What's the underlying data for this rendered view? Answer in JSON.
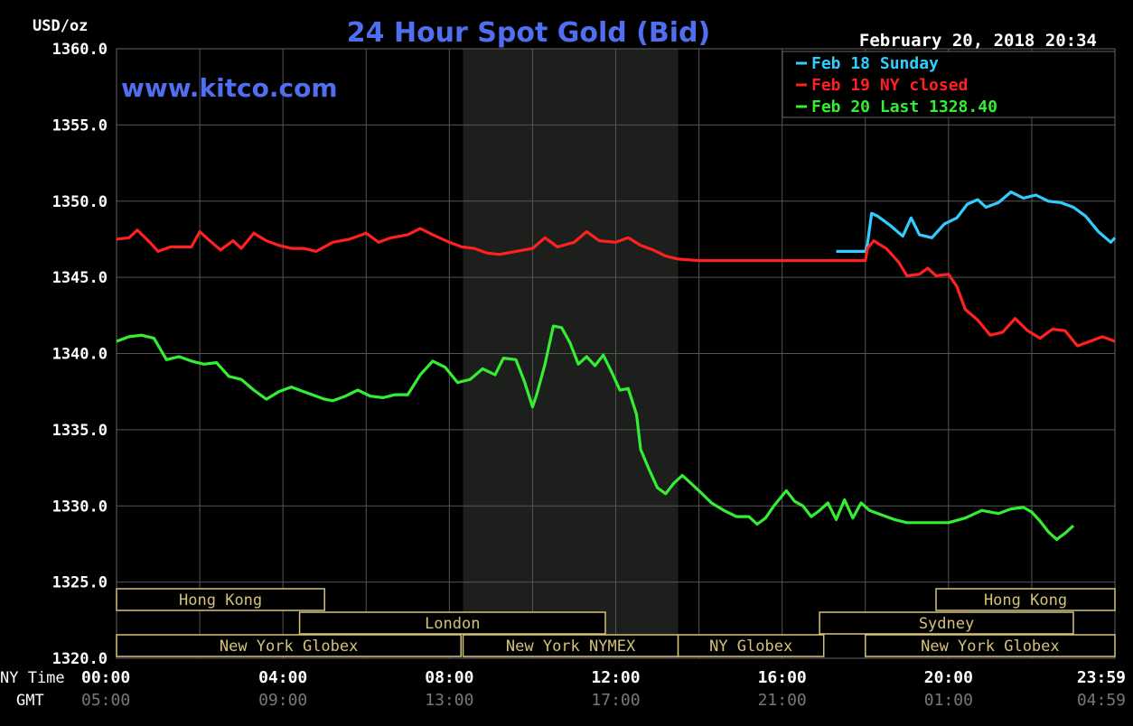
{
  "chart_data": {
    "type": "line",
    "title": "24 Hour Spot Gold (Bid)",
    "ylabel": "USD/oz",
    "watermark": "www.kitco.com",
    "timestamp": "February 20, 2018 20:34",
    "ylim": [
      1320,
      1360
    ],
    "y_ticks": [
      "1360.0",
      "1355.0",
      "1350.0",
      "1345.0",
      "1340.0",
      "1335.0",
      "1330.0",
      "1325.0",
      "1320.0"
    ],
    "xlim": [
      0,
      24
    ],
    "x_row_label": "NY Time",
    "gmt_row_label": "GMT",
    "x_ticks": [
      {
        "x": 0,
        "ny": "00:00",
        "gmt": "05:00"
      },
      {
        "x": 4,
        "ny": "04:00",
        "gmt": "09:00"
      },
      {
        "x": 8,
        "ny": "08:00",
        "gmt": "13:00"
      },
      {
        "x": 12,
        "ny": "12:00",
        "gmt": "17:00"
      },
      {
        "x": 16,
        "ny": "16:00",
        "gmt": "21:00"
      },
      {
        "x": 20,
        "ny": "20:00",
        "gmt": "01:00"
      },
      {
        "x": 24,
        "ny": "23:59",
        "gmt": "04:59"
      }
    ],
    "shaded_range": [
      8.33,
      13.5
    ],
    "grid": true,
    "legend_position": "top-right",
    "series": [
      {
        "name": "Feb 18 Sunday",
        "legend": "Feb 18 Sunday",
        "color": "#33ccff",
        "points": [
          [
            17.3,
            1346.7
          ],
          [
            18.0,
            1346.7
          ],
          [
            18.05,
            1347.2
          ],
          [
            18.15,
            1349.2
          ],
          [
            18.3,
            1349.0
          ],
          [
            18.6,
            1348.4
          ],
          [
            18.9,
            1347.7
          ],
          [
            19.1,
            1348.9
          ],
          [
            19.3,
            1347.8
          ],
          [
            19.6,
            1347.6
          ],
          [
            19.9,
            1348.5
          ],
          [
            20.2,
            1348.9
          ],
          [
            20.45,
            1349.8
          ],
          [
            20.7,
            1350.1
          ],
          [
            20.9,
            1349.6
          ],
          [
            21.2,
            1349.9
          ],
          [
            21.5,
            1350.6
          ],
          [
            21.8,
            1350.2
          ],
          [
            22.1,
            1350.4
          ],
          [
            22.4,
            1350.0
          ],
          [
            22.7,
            1349.9
          ],
          [
            23.0,
            1349.6
          ],
          [
            23.3,
            1349.0
          ],
          [
            23.6,
            1348.0
          ],
          [
            23.9,
            1347.3
          ],
          [
            24.0,
            1347.6
          ]
        ]
      },
      {
        "name": "Feb 19 NY closed",
        "legend": "Feb 19 NY closed",
        "color": "#ff2020",
        "points": [
          [
            0,
            1347.5
          ],
          [
            0.3,
            1347.6
          ],
          [
            0.5,
            1348.1
          ],
          [
            0.8,
            1347.3
          ],
          [
            1.0,
            1346.7
          ],
          [
            1.3,
            1347.0
          ],
          [
            1.6,
            1347.0
          ],
          [
            1.8,
            1347.0
          ],
          [
            2.0,
            1348.0
          ],
          [
            2.2,
            1347.5
          ],
          [
            2.5,
            1346.8
          ],
          [
            2.8,
            1347.4
          ],
          [
            3.0,
            1346.9
          ],
          [
            3.3,
            1347.9
          ],
          [
            3.6,
            1347.4
          ],
          [
            3.9,
            1347.1
          ],
          [
            4.2,
            1346.9
          ],
          [
            4.5,
            1346.9
          ],
          [
            4.8,
            1346.7
          ],
          [
            5.2,
            1347.3
          ],
          [
            5.6,
            1347.5
          ],
          [
            6.0,
            1347.9
          ],
          [
            6.3,
            1347.3
          ],
          [
            6.6,
            1347.6
          ],
          [
            7.0,
            1347.8
          ],
          [
            7.3,
            1348.2
          ],
          [
            7.6,
            1347.8
          ],
          [
            8.0,
            1347.3
          ],
          [
            8.3,
            1347.0
          ],
          [
            8.6,
            1346.9
          ],
          [
            8.9,
            1346.6
          ],
          [
            9.2,
            1346.5
          ],
          [
            9.6,
            1346.7
          ],
          [
            10.0,
            1346.9
          ],
          [
            10.3,
            1347.6
          ],
          [
            10.6,
            1347.0
          ],
          [
            11.0,
            1347.3
          ],
          [
            11.3,
            1348.0
          ],
          [
            11.6,
            1347.4
          ],
          [
            12.0,
            1347.3
          ],
          [
            12.3,
            1347.6
          ],
          [
            12.6,
            1347.1
          ],
          [
            12.9,
            1346.8
          ],
          [
            13.2,
            1346.4
          ],
          [
            13.5,
            1346.2
          ],
          [
            14.0,
            1346.1
          ],
          [
            18.0,
            1346.1
          ],
          [
            18.05,
            1346.9
          ],
          [
            18.2,
            1347.4
          ],
          [
            18.5,
            1346.9
          ],
          [
            18.8,
            1346.0
          ],
          [
            19.0,
            1345.1
          ],
          [
            19.3,
            1345.2
          ],
          [
            19.5,
            1345.6
          ],
          [
            19.7,
            1345.1
          ],
          [
            20.0,
            1345.2
          ],
          [
            20.2,
            1344.4
          ],
          [
            20.4,
            1342.9
          ],
          [
            20.7,
            1342.2
          ],
          [
            21.0,
            1341.2
          ],
          [
            21.3,
            1341.4
          ],
          [
            21.6,
            1342.3
          ],
          [
            21.9,
            1341.5
          ],
          [
            22.2,
            1341.0
          ],
          [
            22.5,
            1341.6
          ],
          [
            22.8,
            1341.5
          ],
          [
            23.1,
            1340.5
          ],
          [
            23.4,
            1340.8
          ],
          [
            23.7,
            1341.1
          ],
          [
            24.0,
            1340.8
          ]
        ]
      },
      {
        "name": "Feb 20",
        "legend": "Feb 20 Last 1328.40",
        "color": "#33ee33",
        "points": [
          [
            0,
            1340.8
          ],
          [
            0.3,
            1341.1
          ],
          [
            0.6,
            1341.2
          ],
          [
            0.9,
            1341.0
          ],
          [
            1.2,
            1339.6
          ],
          [
            1.5,
            1339.8
          ],
          [
            1.8,
            1339.5
          ],
          [
            2.1,
            1339.3
          ],
          [
            2.4,
            1339.4
          ],
          [
            2.7,
            1338.5
          ],
          [
            3.0,
            1338.3
          ],
          [
            3.3,
            1337.6
          ],
          [
            3.6,
            1337.0
          ],
          [
            3.9,
            1337.5
          ],
          [
            4.2,
            1337.8
          ],
          [
            4.5,
            1337.5
          ],
          [
            4.8,
            1337.2
          ],
          [
            5.0,
            1337.0
          ],
          [
            5.2,
            1336.9
          ],
          [
            5.5,
            1337.2
          ],
          [
            5.8,
            1337.6
          ],
          [
            6.1,
            1337.2
          ],
          [
            6.4,
            1337.1
          ],
          [
            6.7,
            1337.3
          ],
          [
            7.0,
            1337.3
          ],
          [
            7.3,
            1338.6
          ],
          [
            7.6,
            1339.5
          ],
          [
            7.9,
            1339.1
          ],
          [
            8.2,
            1338.1
          ],
          [
            8.5,
            1338.3
          ],
          [
            8.8,
            1339.0
          ],
          [
            9.1,
            1338.6
          ],
          [
            9.3,
            1339.7
          ],
          [
            9.6,
            1339.6
          ],
          [
            9.8,
            1338.2
          ],
          [
            10.0,
            1336.5
          ],
          [
            10.1,
            1337.3
          ],
          [
            10.3,
            1339.3
          ],
          [
            10.5,
            1341.8
          ],
          [
            10.7,
            1341.7
          ],
          [
            10.9,
            1340.7
          ],
          [
            11.1,
            1339.3
          ],
          [
            11.3,
            1339.8
          ],
          [
            11.5,
            1339.2
          ],
          [
            11.7,
            1339.9
          ],
          [
            11.9,
            1338.8
          ],
          [
            12.1,
            1337.6
          ],
          [
            12.3,
            1337.7
          ],
          [
            12.5,
            1336.0
          ],
          [
            12.6,
            1333.7
          ],
          [
            12.8,
            1332.4
          ],
          [
            13.0,
            1331.2
          ],
          [
            13.2,
            1330.8
          ],
          [
            13.4,
            1331.5
          ],
          [
            13.6,
            1332.0
          ],
          [
            13.8,
            1331.5
          ],
          [
            14.0,
            1331.0
          ],
          [
            14.3,
            1330.2
          ],
          [
            14.6,
            1329.7
          ],
          [
            14.9,
            1329.3
          ],
          [
            15.2,
            1329.3
          ],
          [
            15.4,
            1328.8
          ],
          [
            15.6,
            1329.2
          ],
          [
            15.8,
            1330.0
          ],
          [
            16.1,
            1331.0
          ],
          [
            16.3,
            1330.3
          ],
          [
            16.5,
            1330.0
          ],
          [
            16.7,
            1329.3
          ],
          [
            16.9,
            1329.7
          ],
          [
            17.1,
            1330.2
          ],
          [
            17.3,
            1329.1
          ],
          [
            17.5,
            1330.4
          ],
          [
            17.7,
            1329.2
          ],
          [
            17.9,
            1330.2
          ],
          [
            18.1,
            1329.7
          ],
          [
            18.4,
            1329.4
          ],
          [
            18.7,
            1329.1
          ],
          [
            19.0,
            1328.9
          ],
          [
            19.5,
            1328.9
          ],
          [
            20.0,
            1328.9
          ],
          [
            20.4,
            1329.2
          ],
          [
            20.8,
            1329.7
          ],
          [
            21.2,
            1329.5
          ],
          [
            21.5,
            1329.8
          ],
          [
            21.8,
            1329.9
          ],
          [
            22.0,
            1329.6
          ],
          [
            22.2,
            1329.0
          ],
          [
            22.4,
            1328.3
          ],
          [
            22.6,
            1327.8
          ],
          [
            22.8,
            1328.2
          ],
          [
            23.0,
            1328.7
          ]
        ]
      }
    ],
    "sessions": [
      {
        "label": "Hong Kong",
        "row": 0,
        "start": 0,
        "end": 5.0
      },
      {
        "label": "London",
        "row": 1,
        "start": 4.4,
        "end": 11.75
      },
      {
        "label": "New York Globex",
        "row": 2,
        "start": 0,
        "end": 8.28
      },
      {
        "label": "New York NYMEX",
        "row": 2,
        "start": 8.33,
        "end": 13.5
      },
      {
        "label": "NY Globex",
        "row": 2,
        "start": 13.5,
        "end": 17.0
      },
      {
        "label": "Hong Kong",
        "row": 0,
        "start": 19.7,
        "end": 24.0
      },
      {
        "label": "Sydney",
        "row": 1,
        "start": 16.9,
        "end": 23.0
      },
      {
        "label": "New York Globex",
        "row": 2,
        "start": 18.0,
        "end": 24.0
      }
    ]
  }
}
